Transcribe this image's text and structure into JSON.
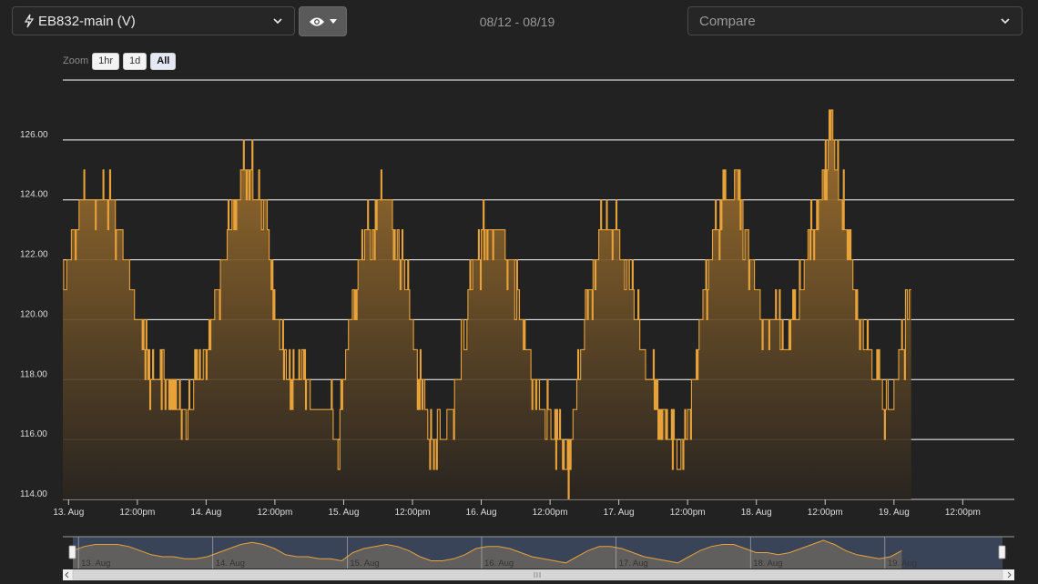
{
  "header": {
    "sensor_label": "EB832-main (V)",
    "bolt_icon": "bolt-icon",
    "view_icon": "eye-icon",
    "date_range": "08/12 - 08/19",
    "compare_placeholder": "Compare"
  },
  "zoom": {
    "label": "Zoom",
    "buttons": [
      "1hr",
      "1d",
      "All"
    ],
    "active": "All"
  },
  "colors": {
    "background": "#222222",
    "line": "#e8a23a",
    "grid": "#ffffff",
    "navigator_bg": "#3a4458",
    "navigator_line": "#e8a23a"
  },
  "chart_data": {
    "type": "area",
    "title": "",
    "xlabel": "",
    "ylabel": "",
    "ylim": [
      114,
      128
    ],
    "yticks": [
      "114.00",
      "116.00",
      "118.00",
      "120.00",
      "122.00",
      "124.00",
      "126.00"
    ],
    "xlim": [
      "2023-08-12T23:00",
      "2023-08-19T21:00"
    ],
    "xticks": [
      "13. Aug",
      "12:00pm",
      "14. Aug",
      "12:00pm",
      "15. Aug",
      "12:00pm",
      "16. Aug",
      "12:00pm",
      "17. Aug",
      "12:00pm",
      "18. Aug",
      "12:00pm",
      "19. Aug",
      "12:00pm"
    ],
    "grid": true,
    "legend": "none",
    "series": [
      {
        "time_step_hours": 2,
        "start": "2023-08-12T23:00",
        "values": [
          121,
          123,
          124,
          124,
          124,
          123,
          121,
          119,
          118,
          118,
          117,
          117,
          118,
          120,
          122,
          124,
          125,
          124,
          122,
          119,
          118,
          118,
          117,
          117,
          116,
          120,
          122,
          123,
          124,
          123,
          121,
          118,
          116,
          116,
          117,
          119,
          122,
          123,
          123,
          122,
          120,
          118,
          117,
          116,
          115,
          118,
          121,
          123,
          123,
          122,
          120,
          118,
          117,
          116,
          115,
          118,
          121,
          123,
          124,
          124,
          122,
          120,
          120,
          119,
          120,
          122,
          124,
          126,
          124,
          121,
          119,
          118,
          117,
          118,
          121
        ]
      }
    ],
    "navigator_labels": [
      "13. Aug",
      "14. Aug",
      "15. Aug",
      "16. Aug",
      "17. Aug",
      "18. Aug",
      "19. Aug"
    ]
  }
}
